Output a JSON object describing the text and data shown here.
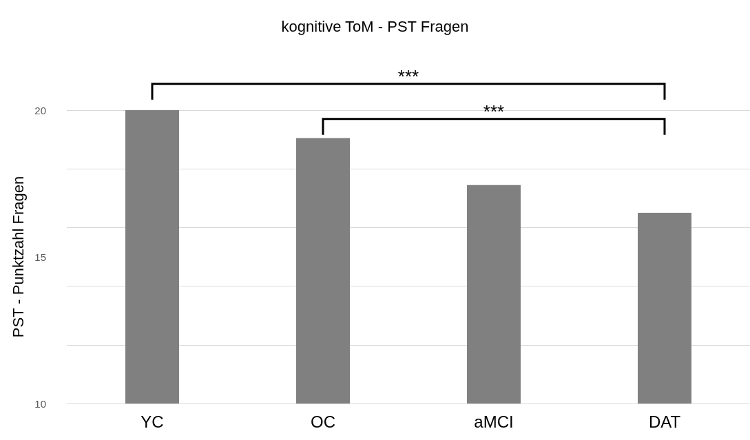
{
  "chart_data": {
    "type": "bar",
    "title": "kognitive ToM - PST Fragen",
    "ylabel": "PST - Punktzahl Fragen",
    "categories": [
      "YC",
      "OC",
      "aMCI",
      "DAT"
    ],
    "values": [
      20.0,
      19.05,
      17.45,
      16.5
    ],
    "color": "#808080",
    "ylim": [
      10,
      20
    ],
    "yticks": [
      10,
      15,
      20
    ],
    "grid": "y",
    "annotations": [
      "***",
      "***"
    ]
  }
}
